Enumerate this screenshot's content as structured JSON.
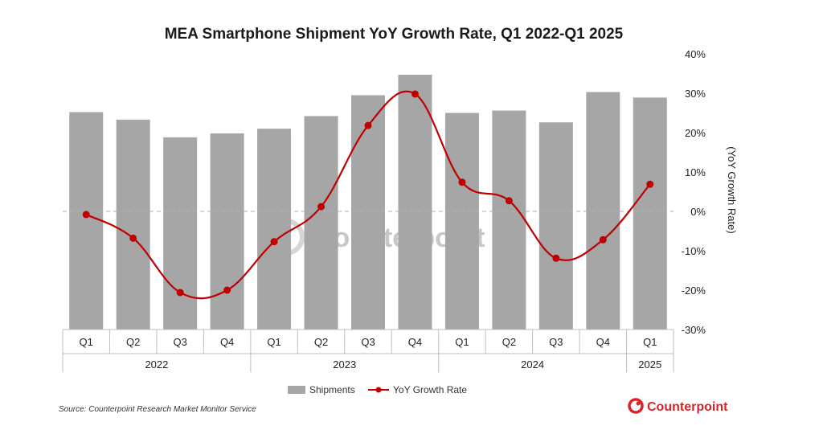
{
  "chart_data": {
    "type": "bar",
    "title": "MEA Smartphone Shipment YoY Growth Rate, Q1 2022-Q1 2025",
    "categories": [
      "Q1",
      "Q2",
      "Q3",
      "Q4",
      "Q1",
      "Q2",
      "Q3",
      "Q4",
      "Q1",
      "Q2",
      "Q3",
      "Q4",
      "Q1"
    ],
    "years": [
      {
        "label": "2022",
        "span": 4
      },
      {
        "label": "2023",
        "span": 4
      },
      {
        "label": "2024",
        "span": 4
      },
      {
        "label": "2025",
        "span": 1
      }
    ],
    "series": [
      {
        "name": "Shipments",
        "type": "bar",
        "color": "#a6a6a6",
        "values": [
          25.2,
          23.3,
          18.8,
          19.8,
          21.0,
          24.2,
          29.5,
          34.7,
          25.0,
          25.6,
          22.6,
          30.3,
          28.9
        ]
      },
      {
        "name": "YoY Growth Rate",
        "type": "line",
        "color": "#c00000",
        "values": [
          -0.8,
          -6.8,
          -20.6,
          -20.0,
          -7.7,
          1.2,
          21.8,
          29.8,
          7.4,
          2.7,
          -11.9,
          -7.2,
          6.9
        ]
      }
    ],
    "y2label": "(YoY Growth Rate)",
    "y2lim": [
      -30,
      40
    ],
    "y2ticks": [
      "40%",
      "30%",
      "20%",
      "10%",
      "0%",
      "-10%",
      "-20%",
      "-30%"
    ],
    "legend_position": "bottom"
  },
  "footer": {
    "source": "Source: Counterpoint Research Market Monitor Service",
    "brand": "Counterpoint",
    "watermark": "Counterpoint"
  }
}
